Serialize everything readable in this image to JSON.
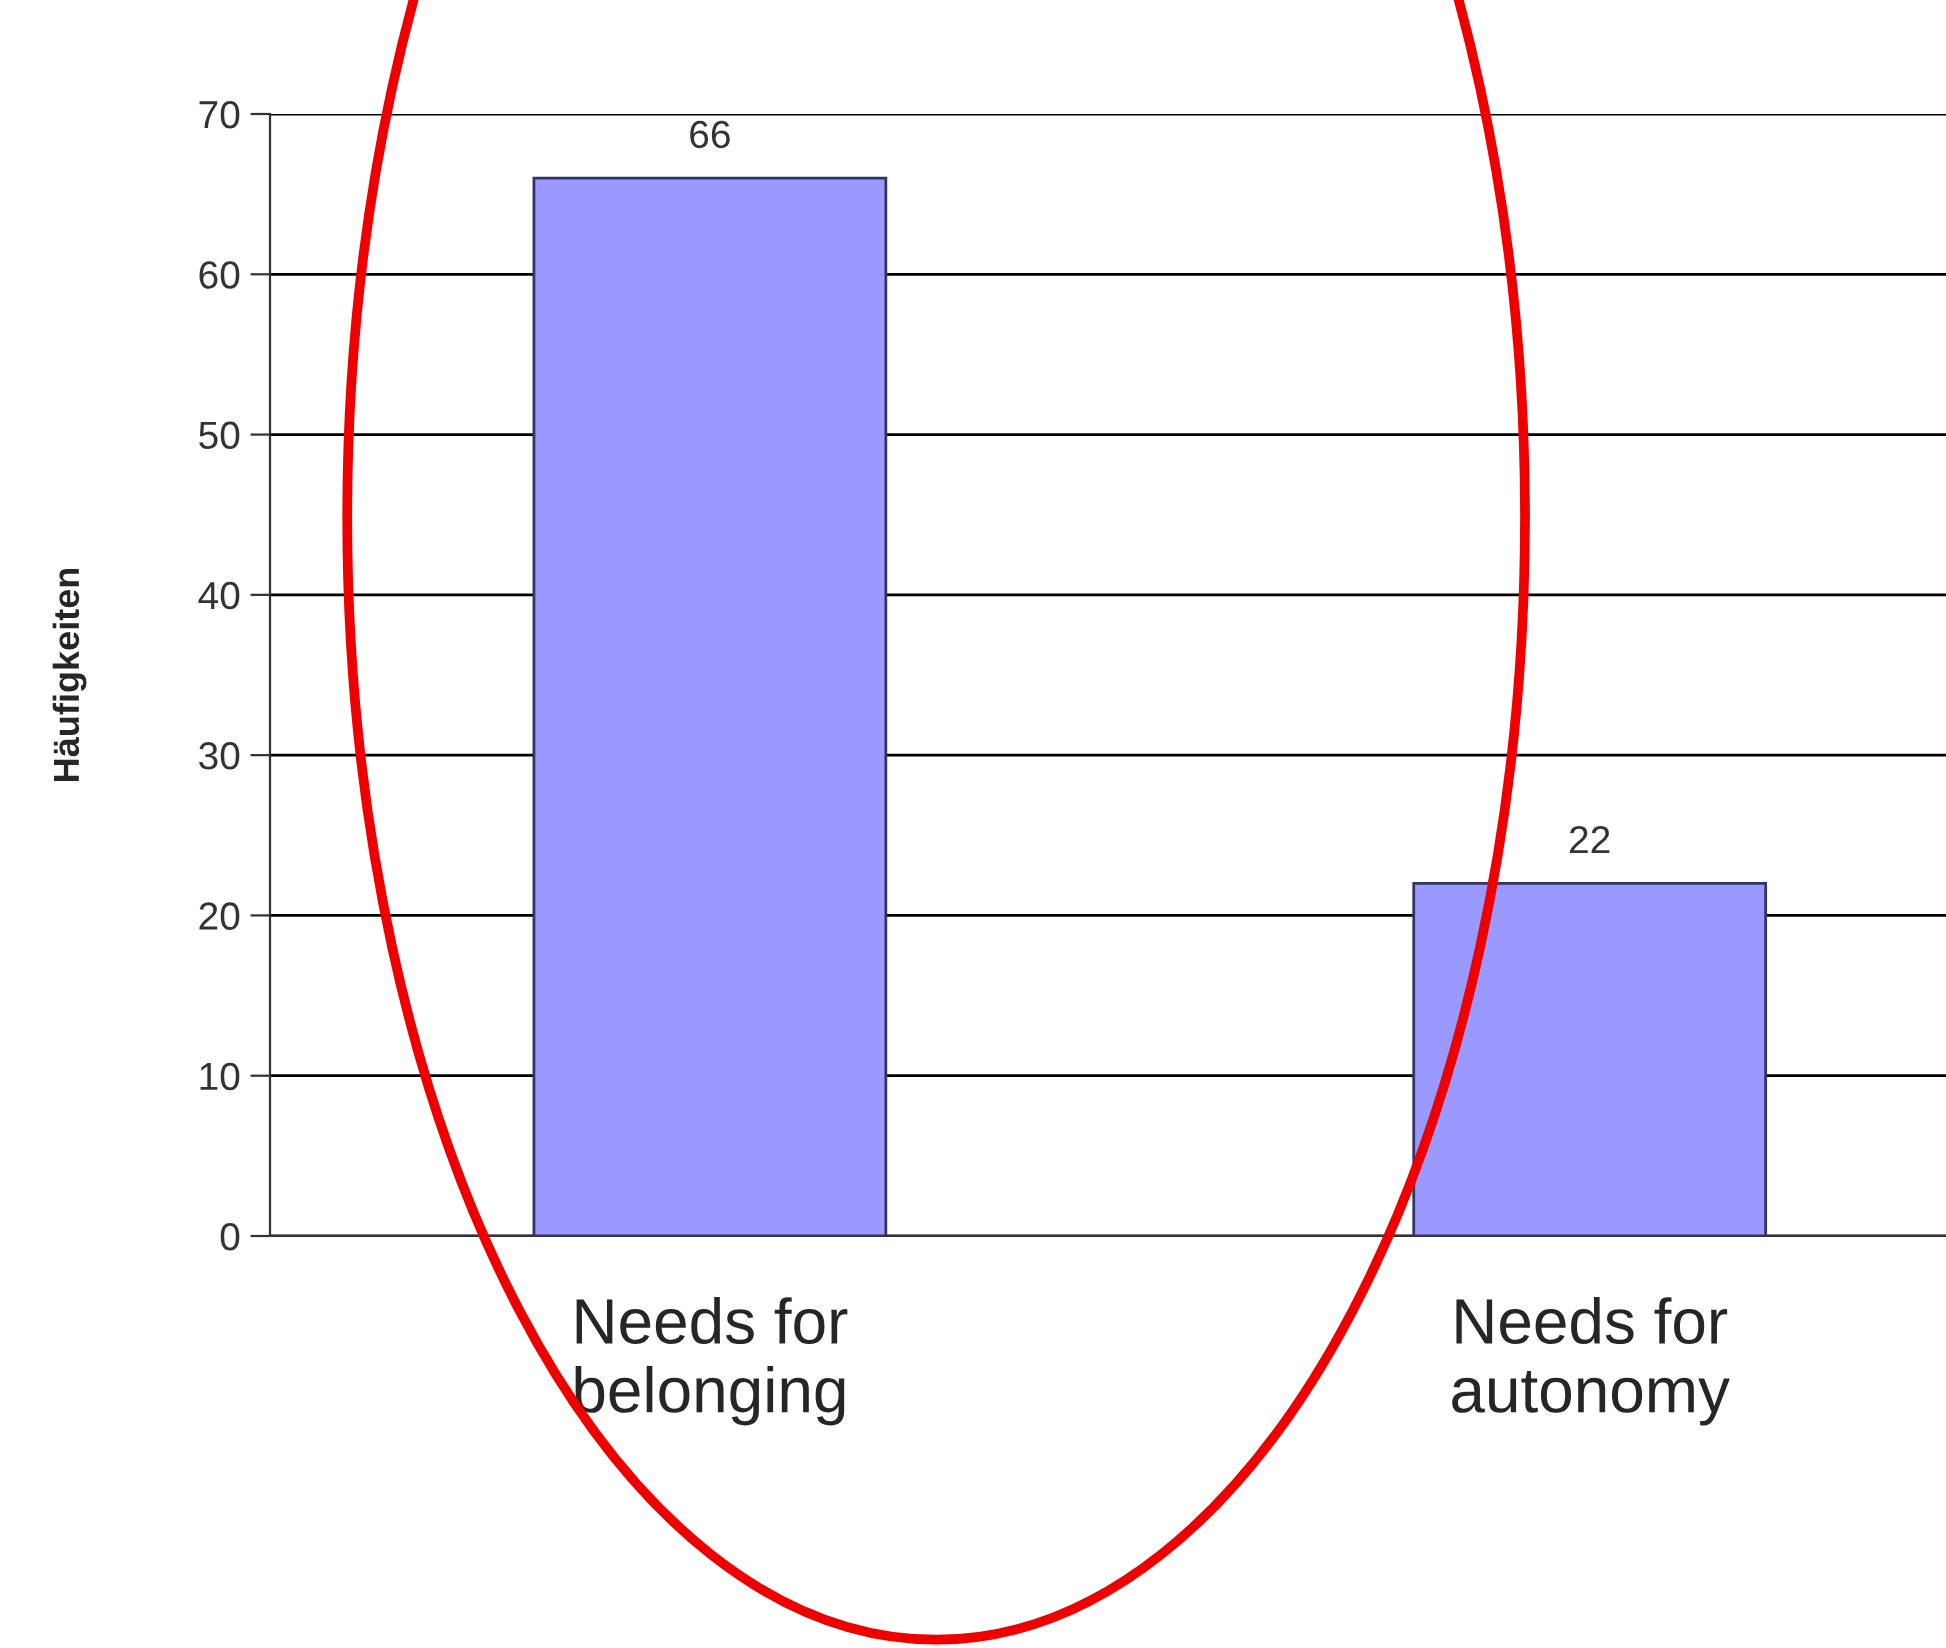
{
  "chart_data": {
    "type": "bar",
    "ylabel": "Häufigkeiten",
    "categories": [
      "Needs for\nbelonging",
      "Needs for\nautonomy"
    ],
    "values": [
      66,
      22
    ],
    "color": "#9999ff",
    "ylim": [
      0,
      70
    ],
    "yticks": [
      0,
      10,
      20,
      30,
      40,
      50,
      60,
      70
    ],
    "grid": "y",
    "data_labels": true
  }
}
